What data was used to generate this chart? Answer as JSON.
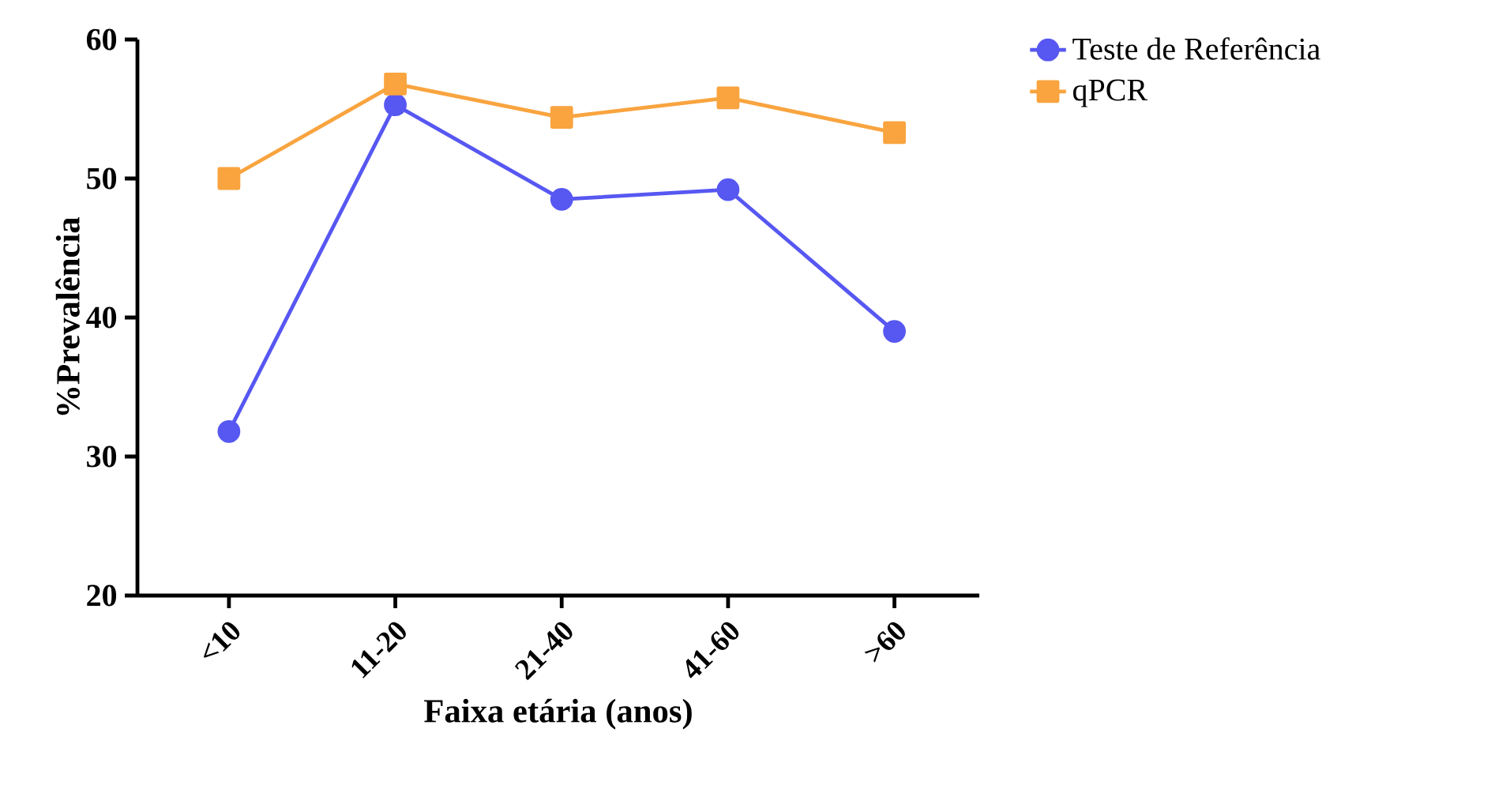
{
  "chart_data": {
    "type": "line",
    "xlabel": "Faixa etária (anos)",
    "ylabel": "%Prevalência",
    "categories": [
      "<10",
      "11-20",
      "21-40",
      "41-60",
      ">60"
    ],
    "series": [
      {
        "name": "Teste de Referência",
        "color": "#5757f2",
        "marker": "circle",
        "values": [
          31.8,
          55.3,
          48.5,
          49.2,
          39.0
        ]
      },
      {
        "name": "qPCR",
        "color": "#f9a43f",
        "marker": "square",
        "values": [
          50.0,
          56.8,
          54.4,
          55.8,
          53.3
        ]
      }
    ],
    "ylim": [
      20,
      60
    ],
    "yticks": [
      20,
      30,
      40,
      50,
      60
    ],
    "grid": false,
    "legend": "top right",
    "line_style": "solid"
  }
}
